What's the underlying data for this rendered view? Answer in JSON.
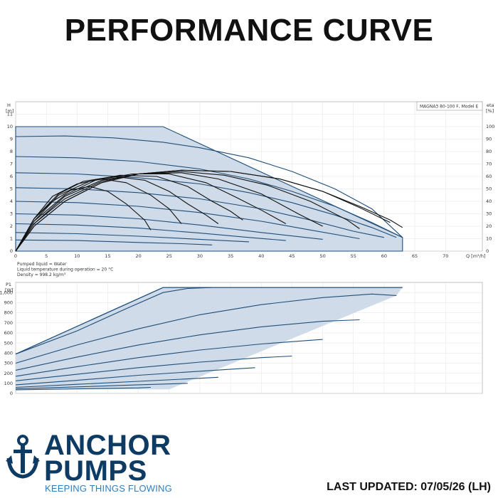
{
  "page": {
    "title": "PERFORMANCE CURVE",
    "last_updated": "LAST UPDATED: 07/05/26 (LH)"
  },
  "brand": {
    "line1": "ANCHOR",
    "line2": "PUMPS",
    "tagline": "KEEPING THINGS FLOWING",
    "icon": "anchor-icon",
    "color_primary": "#0d3b63",
    "color_accent": "#2f7fbf"
  },
  "chart_data": [
    {
      "type": "line",
      "model_label": "MAGNA3 80-100 F, Model E",
      "y_label": "H",
      "y_unit": "[m]",
      "y2_label": "eta",
      "y2_unit": "[%]",
      "x_label": "Q [m³/h]",
      "xlim": [
        0,
        76
      ],
      "ylim": [
        0,
        12
      ],
      "y2lim": [
        0,
        120
      ],
      "x_ticks": [
        0,
        5,
        10,
        15,
        20,
        25,
        30,
        35,
        40,
        45,
        50,
        55,
        60,
        65,
        70
      ],
      "y_ticks": [
        0,
        1,
        2,
        3,
        4,
        5,
        6,
        7,
        8,
        9,
        10,
        11
      ],
      "y2_ticks": [
        0,
        10,
        20,
        30,
        40,
        50,
        60,
        70,
        80,
        90,
        100
      ],
      "grid": true,
      "colors": {
        "fill": "#cfdbe8",
        "curve": "#1f4e79",
        "eff": "#111111"
      },
      "envelope": {
        "x": [
          0,
          24,
          63,
          63,
          0
        ],
        "y": [
          10,
          10,
          1.1,
          0,
          0
        ]
      },
      "head_curves": [
        {
          "x": [
            0,
            8,
            16,
            24,
            30,
            38,
            45,
            52,
            58,
            63
          ],
          "y": [
            9.2,
            9.25,
            9.1,
            8.75,
            8.3,
            7.5,
            6.4,
            5.0,
            3.4,
            1.1
          ]
        },
        {
          "x": [
            0,
            10,
            20,
            30,
            38,
            45,
            52,
            58,
            63
          ],
          "y": [
            7.6,
            7.5,
            7.2,
            6.6,
            5.8,
            4.8,
            3.6,
            2.3,
            1.1
          ]
        },
        {
          "x": [
            0,
            10,
            20,
            30,
            38,
            45,
            52,
            58,
            62
          ],
          "y": [
            6.3,
            6.2,
            5.9,
            5.4,
            4.7,
            3.9,
            2.9,
            1.9,
            1.1
          ]
        },
        {
          "x": [
            0,
            10,
            20,
            30,
            40,
            48,
            55,
            60
          ],
          "y": [
            5.1,
            5.0,
            4.7,
            4.2,
            3.4,
            2.5,
            1.6,
            1.1
          ]
        },
        {
          "x": [
            0,
            10,
            20,
            30,
            40,
            48,
            56
          ],
          "y": [
            4.0,
            3.9,
            3.6,
            3.1,
            2.4,
            1.7,
            1.0
          ]
        },
        {
          "x": [
            0,
            10,
            20,
            30,
            40,
            50
          ],
          "y": [
            3.0,
            2.9,
            2.6,
            2.1,
            1.5,
            0.95
          ]
        },
        {
          "x": [
            0,
            10,
            20,
            30,
            38,
            44
          ],
          "y": [
            2.2,
            2.1,
            1.85,
            1.45,
            1.1,
            0.85
          ]
        },
        {
          "x": [
            0,
            10,
            20,
            30,
            38
          ],
          "y": [
            1.5,
            1.4,
            1.2,
            0.95,
            0.75
          ]
        },
        {
          "x": [
            0,
            10,
            20,
            27,
            32
          ],
          "y": [
            0.9,
            0.85,
            0.7,
            0.6,
            0.5
          ]
        }
      ],
      "efficiency_curves": [
        {
          "x": [
            0,
            3,
            8,
            14,
            20,
            27,
            35,
            43,
            50,
            56,
            61,
            63
          ],
          "y": [
            0,
            20,
            40,
            55,
            62,
            65,
            64,
            58,
            48,
            36,
            25,
            19
          ]
        },
        {
          "x": [
            0,
            3,
            8,
            14,
            20,
            27,
            35,
            43,
            50,
            56,
            61
          ],
          "y": [
            0,
            20,
            40,
            55,
            62,
            65,
            64,
            58,
            48,
            35,
            23
          ]
        },
        {
          "x": [
            0,
            3,
            8,
            14,
            20,
            27,
            34,
            41,
            48,
            54,
            56
          ],
          "y": [
            0,
            22,
            42,
            56,
            62,
            64,
            61,
            53,
            40,
            25,
            18
          ]
        },
        {
          "x": [
            0,
            3,
            8,
            14,
            20,
            27,
            33,
            40,
            46,
            50
          ],
          "y": [
            0,
            22,
            44,
            57,
            62,
            63,
            58,
            46,
            30,
            20
          ]
        },
        {
          "x": [
            0,
            3,
            8,
            13,
            19,
            25,
            31,
            36,
            40,
            44
          ],
          "y": [
            0,
            24,
            45,
            57,
            62,
            62,
            55,
            43,
            33,
            22
          ]
        },
        {
          "x": [
            0,
            3,
            7,
            12,
            17,
            23,
            28,
            32,
            35,
            37
          ],
          "y": [
            0,
            24,
            45,
            56,
            61,
            60,
            52,
            40,
            32,
            25
          ]
        },
        {
          "x": [
            0,
            3,
            7,
            11,
            16,
            21,
            25,
            28,
            31,
            33
          ],
          "y": [
            0,
            26,
            46,
            56,
            60,
            57,
            48,
            38,
            29,
            22
          ]
        },
        {
          "x": [
            0,
            3,
            6,
            10,
            14,
            18,
            22,
            25,
            27
          ],
          "y": [
            0,
            26,
            44,
            54,
            58,
            55,
            45,
            34,
            22
          ]
        },
        {
          "x": [
            0,
            3,
            6,
            9,
            12,
            15,
            18,
            21,
            22
          ],
          "y": [
            0,
            26,
            40,
            49,
            52,
            48,
            38,
            25,
            17
          ]
        }
      ],
      "notes": [
        "Pumped liquid = Water",
        "Liquid temperature during operation = 20 °C",
        "Density = 998.2 kg/m³"
      ]
    },
    {
      "type": "line",
      "y_label": "P1",
      "y_unit": "[W]",
      "xlim": [
        0,
        76
      ],
      "ylim": [
        0,
        1100
      ],
      "y_ticks": [
        0,
        100,
        200,
        300,
        400,
        500,
        600,
        700,
        800,
        900,
        1000
      ],
      "y_tick_labels": [
        "0",
        "100",
        "200",
        "300",
        "400",
        "500",
        "600",
        "700",
        "800",
        "900",
        "1,000"
      ],
      "grid": true,
      "envelope": {
        "x": [
          0,
          24,
          63,
          62,
          25,
          0
        ],
        "y": [
          390,
          1050,
          1050,
          970,
          40,
          40
        ]
      },
      "power_curves": [
        {
          "x": [
            0,
            10,
            18,
            24,
            28,
            32
          ],
          "y": [
            390,
            620,
            840,
            1000,
            1040,
            1050
          ]
        },
        {
          "x": [
            0,
            10,
            20,
            30,
            40,
            50,
            58,
            62
          ],
          "y": [
            300,
            480,
            640,
            780,
            880,
            950,
            985,
            970
          ]
        },
        {
          "x": [
            0,
            10,
            20,
            30,
            40,
            50,
            56
          ],
          "y": [
            230,
            360,
            480,
            580,
            660,
            715,
            730
          ]
        },
        {
          "x": [
            0,
            10,
            20,
            30,
            40,
            50
          ],
          "y": [
            170,
            265,
            355,
            430,
            490,
            535
          ]
        },
        {
          "x": [
            0,
            10,
            20,
            30,
            40,
            45
          ],
          "y": [
            125,
            190,
            255,
            310,
            355,
            370
          ]
        },
        {
          "x": [
            0,
            10,
            20,
            30,
            39
          ],
          "y": [
            85,
            130,
            180,
            220,
            255
          ]
        },
        {
          "x": [
            0,
            10,
            20,
            30,
            33
          ],
          "y": [
            60,
            90,
            120,
            150,
            160
          ]
        },
        {
          "x": [
            0,
            10,
            20,
            28
          ],
          "y": [
            45,
            65,
            85,
            100
          ]
        },
        {
          "x": [
            0,
            10,
            20,
            22
          ],
          "y": [
            35,
            45,
            55,
            60
          ]
        }
      ]
    }
  ]
}
